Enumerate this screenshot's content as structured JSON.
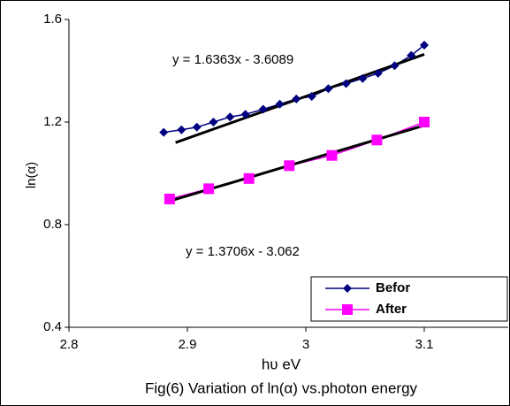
{
  "chart_data": {
    "type": "line",
    "title": "Fig(6) Variation of ln(α) vs.photon energy",
    "x_label": "hʋ    eV",
    "y_label": "ln(α)",
    "xlim": [
      2.8,
      3.15
    ],
    "xticks": [
      2.8,
      2.9,
      3,
      3.1
    ],
    "ylim": [
      0.4,
      1.6
    ],
    "yticks": [
      {
        "value": 0.4,
        "label": "0.4"
      },
      {
        "value": 0.8,
        "label": "0.8"
      },
      {
        "value": 1.2,
        "label": "1.2"
      },
      {
        "value": 1.6,
        "label": "1.6"
      }
    ],
    "legend": "lower right",
    "series": [
      {
        "name": "Befor",
        "color": "#000080",
        "marker": "diamond",
        "x": [
          2.88,
          2.895,
          2.908,
          2.922,
          2.936,
          2.949,
          2.964,
          2.978,
          2.992,
          3.005,
          3.019,
          3.034,
          3.048,
          3.061,
          3.075,
          3.089,
          3.1
        ],
        "values": [
          1.16,
          1.17,
          1.18,
          1.2,
          1.22,
          1.23,
          1.25,
          1.27,
          1.29,
          1.3,
          1.33,
          1.35,
          1.37,
          1.39,
          1.42,
          1.46,
          1.5
        ],
        "trendline": {
          "x": [
            2.89,
            3.1
          ],
          "values": [
            1.12,
            1.464
          ],
          "equation": "y = 1.6363x  - 3.6089"
        }
      },
      {
        "name": "After",
        "color": "#ff00ff",
        "marker": "square",
        "x": [
          2.885,
          2.918,
          2.952,
          2.986,
          3.022,
          3.06,
          3.1
        ],
        "values": [
          0.9,
          0.94,
          0.98,
          1.03,
          1.07,
          1.13,
          1.2
        ],
        "trendline": {
          "x": [
            2.885,
            3.1
          ],
          "values": [
            0.892,
            1.187
          ],
          "equation": "y = 1.3706x  - 3.062"
        }
      }
    ]
  }
}
